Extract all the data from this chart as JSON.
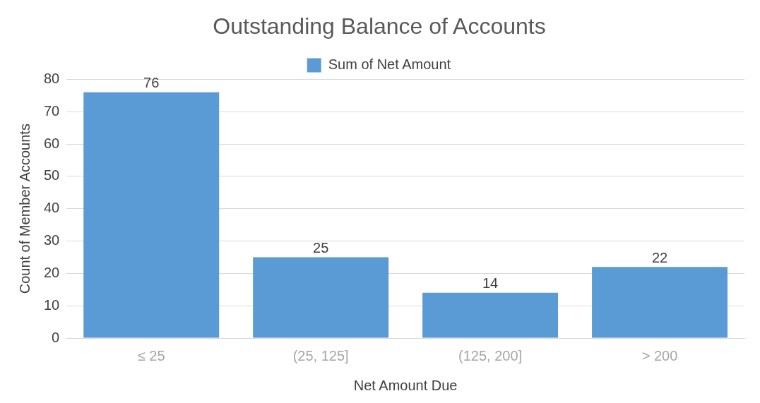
{
  "chart_data": {
    "type": "bar",
    "title": "Outstanding Balance of Accounts",
    "xlabel": "Net Amount Due",
    "ylabel": "Count of Member Accounts",
    "categories": [
      "≤ 25",
      "(25, 125]",
      "(125, 200]",
      "> 200"
    ],
    "series": [
      {
        "name": "Sum of Net Amount",
        "color": "#5b9bd5",
        "values": [
          76,
          25,
          14,
          22
        ]
      }
    ],
    "ylim": [
      0,
      80
    ],
    "yticks": [
      0,
      10,
      20,
      30,
      40,
      50,
      60,
      70,
      80
    ],
    "grid": "y",
    "legend": "top",
    "data_labels": true
  }
}
